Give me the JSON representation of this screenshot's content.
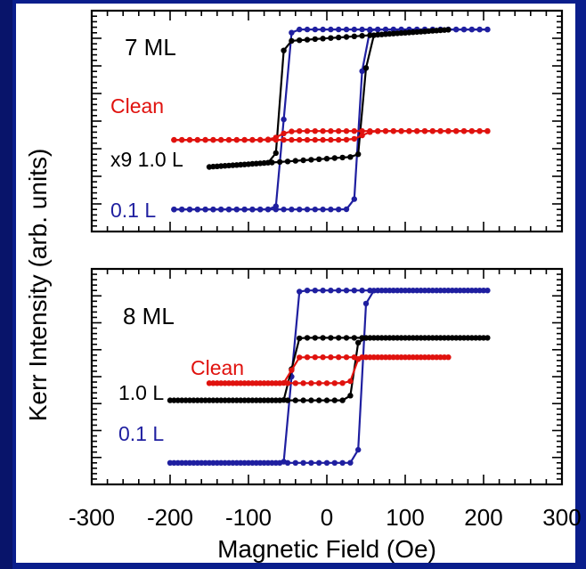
{
  "chart_data": [
    {
      "type": "line",
      "panel_label": "7 ML",
      "xlim": [
        -300,
        300
      ],
      "xticks": [
        -300,
        -200,
        -100,
        0,
        100,
        200,
        300
      ],
      "xtick_labels": [
        "-300",
        "-200",
        "-100",
        "0",
        "100",
        "200",
        "300"
      ],
      "xlabel": "Magnetic Field  (Oe)",
      "ylabel": "Kerr Intensity  (arb. units)",
      "yunits": "arbitrary",
      "series": [
        {
          "name": "0.1 L",
          "color": "#1f1fa0",
          "x_range": [
            -195,
            205
          ],
          "coercive": [
            -55,
            42
          ],
          "low": 1.0,
          "high": 9.15,
          "width": 5
        },
        {
          "name": "x9 1.0 L",
          "color": "#000000",
          "x_range": [
            -150,
            155
          ],
          "coercive": [
            -60,
            48
          ],
          "low": 3.3,
          "high": 8.75,
          "width": 4,
          "tilt": 0.5
        },
        {
          "name": "Clean",
          "color": "#e0120e",
          "x_range": [
            -195,
            205
          ],
          "coercive": [
            -60,
            45
          ],
          "low": 4.15,
          "high": 4.55,
          "width": 10
        }
      ]
    },
    {
      "type": "line",
      "panel_label": "8 ML",
      "xlim": [
        -300,
        300
      ],
      "xticks": [
        -300,
        -200,
        -100,
        0,
        100,
        200,
        300
      ],
      "xtick_labels": [
        "-300",
        "-200",
        "-100",
        "0",
        "100",
        "200",
        "300"
      ],
      "xlabel": "Magnetic Field  (Oe)",
      "ylabel": "Kerr Intensity  (arb. units)",
      "yunits": "arbitrary",
      "series": [
        {
          "name": "0.1 L",
          "color": "#1f1fa0",
          "x_range": [
            -200,
            205
          ],
          "coercive": [
            -45,
            45
          ],
          "low": 1.0,
          "high": 9.0,
          "width": 4
        },
        {
          "name": "1.0 L",
          "color": "#000000",
          "x_range": [
            -200,
            205
          ],
          "coercive": [
            -45,
            35
          ],
          "low": 3.9,
          "high": 6.8,
          "width": 4
        },
        {
          "name": "Clean",
          "color": "#e0120e",
          "x_range": [
            -150,
            155
          ],
          "coercive": [
            -45,
            35
          ],
          "low": 4.7,
          "high": 5.9,
          "width": 4
        }
      ]
    }
  ]
}
